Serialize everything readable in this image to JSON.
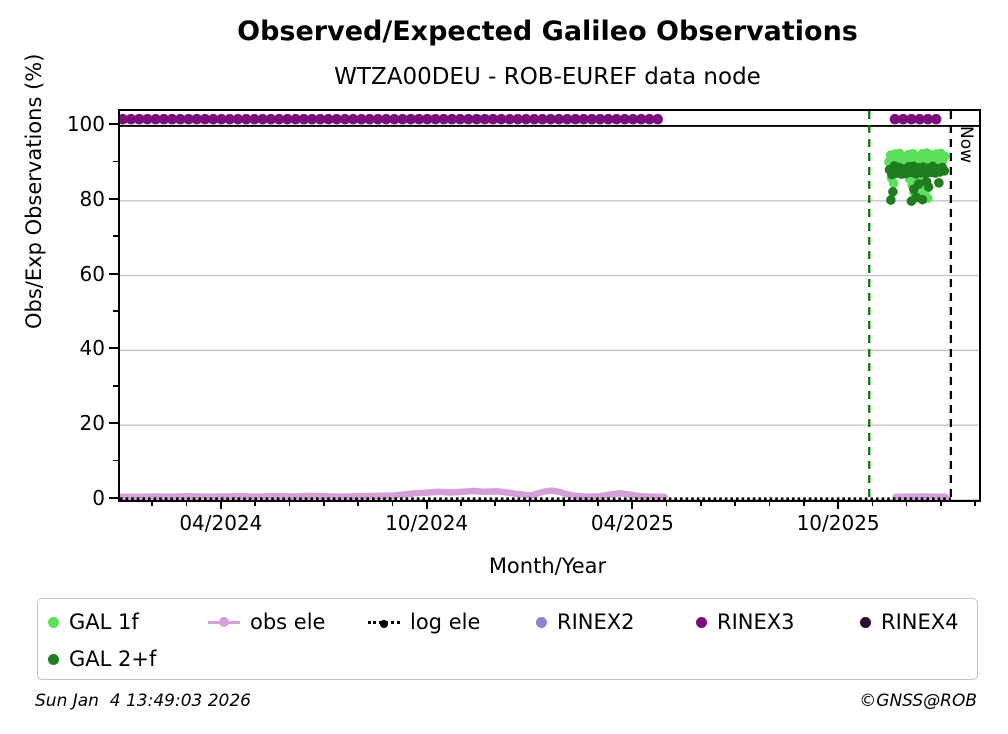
{
  "header": {
    "title": "Observed/Expected Galileo Observations",
    "subtitle": "WTZA00DEU - ROB-EUREF data node"
  },
  "footer": {
    "timestamp": "Sun Jan  4 13:49:03 2026",
    "copyright": "©GNSS@ROB"
  },
  "legend": {
    "items": [
      {
        "label": "GAL 1f",
        "color": "#5ce05c",
        "marker": "dot"
      },
      {
        "label": "GAL 2+f",
        "color": "#1f7d1f",
        "marker": "dot"
      },
      {
        "label": "obs ele",
        "color": "#d5a0d8",
        "marker": "line-dot"
      },
      {
        "label": "log ele",
        "color": "#000000",
        "marker": "dotted-line-dot"
      },
      {
        "label": "RINEX2",
        "color": "#8a85cf",
        "marker": "dot"
      },
      {
        "label": "RINEX3",
        "color": "#7c0d7c",
        "marker": "dot"
      },
      {
        "label": "RINEX4",
        "color": "#2e0b36",
        "marker": "dot"
      }
    ]
  },
  "chart_data": {
    "type": "scatter",
    "title": "Observed/Expected Galileo Observations",
    "subtitle": "WTZA00DEU - ROB-EUREF data node",
    "xlabel": "Month/Year",
    "ylabel": "Obs/Exp Observations (%)",
    "x_unit": "months since 2024-01-01",
    "xlim": [
      0,
      25.05
    ],
    "ylim": [
      0,
      104
    ],
    "grid": {
      "y_gray": [
        0,
        20,
        40,
        60,
        80
      ],
      "y_black_ref": 100,
      "gray_color": "#c6c6c6"
    },
    "yticks": [
      {
        "v": 0,
        "label": "0"
      },
      {
        "v": 20,
        "label": "20"
      },
      {
        "v": 40,
        "label": "40"
      },
      {
        "v": 60,
        "label": "60"
      },
      {
        "v": 80,
        "label": "80"
      },
      {
        "v": 100,
        "label": "100"
      }
    ],
    "yticks_minor": [
      10,
      30,
      50,
      70,
      90
    ],
    "xticks": [
      {
        "v": 3,
        "label": "04/2024"
      },
      {
        "v": 9,
        "label": "10/2024"
      },
      {
        "v": 15,
        "label": "04/2025"
      },
      {
        "v": 21,
        "label": "10/2025"
      }
    ],
    "xticks_minor": [
      1,
      2,
      4,
      5,
      6,
      7,
      8,
      10,
      11,
      12,
      13,
      14,
      16,
      17,
      18,
      19,
      20,
      22,
      23,
      24,
      25
    ],
    "vlines": [
      {
        "name": "data-gate-line",
        "x": 21.85,
        "color": "#007a00",
        "dash": "8 6",
        "width": 2.3
      },
      {
        "name": "now-line",
        "x": 24.23,
        "color": "#000000",
        "dash": "8 6",
        "width": 2.3,
        "label": "Now"
      }
    ],
    "series": [
      {
        "name": "RINEX3",
        "type": "dot_band",
        "color": "#7c0d7c",
        "y": 101.8,
        "dot_r": 5.3,
        "segments": [
          [
            0.08,
            15.88
          ],
          [
            22.6,
            24.03
          ]
        ]
      },
      {
        "name": "obs ele",
        "type": "line",
        "color": "#d5a0d8",
        "width": 6.5,
        "segments": [
          [
            [
              0,
              0.9
            ],
            [
              0.5,
              0.85
            ],
            [
              1,
              0.95
            ],
            [
              1.5,
              0.9
            ],
            [
              2,
              1.0
            ],
            [
              2.5,
              0.9
            ],
            [
              3,
              0.95
            ],
            [
              3.5,
              1.0
            ],
            [
              4,
              0.9
            ],
            [
              4.5,
              1.05
            ],
            [
              5,
              0.95
            ],
            [
              5.5,
              1.1
            ],
            [
              6,
              1.0
            ],
            [
              6.5,
              0.9
            ],
            [
              7,
              1.05
            ],
            [
              7.5,
              1.1
            ],
            [
              8,
              1.2
            ],
            [
              8.3,
              1.5
            ],
            [
              8.6,
              1.8
            ],
            [
              9,
              2.0
            ],
            [
              9.3,
              2.2
            ],
            [
              9.6,
              2.0
            ],
            [
              10,
              2.2
            ],
            [
              10.3,
              2.4
            ],
            [
              10.6,
              2.2
            ],
            [
              11,
              2.3
            ],
            [
              11.3,
              2.0
            ],
            [
              11.6,
              1.6
            ],
            [
              12,
              1.2
            ],
            [
              12.2,
              1.8
            ],
            [
              12.4,
              2.3
            ],
            [
              12.6,
              2.5
            ],
            [
              12.8,
              2.2
            ],
            [
              13,
              1.6
            ],
            [
              13.3,
              1.1
            ],
            [
              13.6,
              0.9
            ],
            [
              14,
              1.0
            ],
            [
              14.3,
              1.5
            ],
            [
              14.6,
              1.8
            ],
            [
              14.9,
              1.4
            ],
            [
              15.2,
              1.0
            ],
            [
              15.5,
              0.9
            ],
            [
              15.88,
              0.85
            ]
          ],
          [
            [
              22.62,
              0.85
            ],
            [
              23.0,
              0.9
            ],
            [
              23.4,
              0.95
            ],
            [
              23.8,
              0.9
            ],
            [
              24.08,
              0.85
            ]
          ]
        ]
      },
      {
        "name": "log ele",
        "type": "dotted_line",
        "color": "#000000",
        "y": 0.35,
        "x_range": [
          0,
          24.23
        ],
        "width": 2.6,
        "dash": "2.6 3"
      },
      {
        "name": "GAL 1f",
        "type": "scatter",
        "color": "#5ce05c",
        "dot_r": 4.8,
        "points": [
          [
            22.42,
            90.4
          ],
          [
            22.47,
            92.2
          ],
          [
            22.53,
            89.9
          ],
          [
            22.6,
            92.5
          ],
          [
            22.66,
            90.9
          ],
          [
            22.73,
            92.7
          ],
          [
            22.8,
            90.1
          ],
          [
            22.87,
            91.6
          ],
          [
            22.93,
            90.2
          ],
          [
            23.0,
            92.4
          ],
          [
            23.06,
            90.7
          ],
          [
            23.13,
            92.6
          ],
          [
            23.2,
            90.0
          ],
          [
            23.27,
            91.9
          ],
          [
            23.33,
            90.5
          ],
          [
            23.4,
            92.6
          ],
          [
            23.47,
            91.0
          ],
          [
            23.53,
            92.8
          ],
          [
            23.6,
            90.2
          ],
          [
            23.67,
            92.3
          ],
          [
            23.73,
            90.7
          ],
          [
            23.8,
            92.5
          ],
          [
            23.87,
            91.1
          ],
          [
            23.93,
            92.7
          ],
          [
            24.0,
            90.8
          ],
          [
            24.05,
            91.9
          ],
          [
            22.5,
            86.1
          ],
          [
            22.56,
            84.7
          ],
          [
            23.02,
            85.9
          ],
          [
            23.1,
            84.2
          ],
          [
            23.16,
            82.1
          ],
          [
            23.23,
            86.3
          ],
          [
            23.3,
            83.9
          ],
          [
            23.36,
            81.4
          ],
          [
            23.43,
            85.3
          ],
          [
            23.5,
            82.9
          ],
          [
            23.56,
            80.7
          ]
        ]
      },
      {
        "name": "GAL 2+f",
        "type": "scatter",
        "color": "#1f7d1f",
        "dot_r": 4.8,
        "points": [
          [
            22.44,
            88.3
          ],
          [
            22.51,
            87.0
          ],
          [
            22.58,
            89.3
          ],
          [
            22.65,
            87.4
          ],
          [
            22.72,
            88.9
          ],
          [
            22.79,
            87.1
          ],
          [
            22.86,
            88.5
          ],
          [
            22.93,
            87.3
          ],
          [
            23.0,
            89.1
          ],
          [
            23.07,
            87.6
          ],
          [
            23.14,
            89.2
          ],
          [
            23.21,
            87.2
          ],
          [
            23.28,
            88.8
          ],
          [
            23.35,
            87.5
          ],
          [
            23.42,
            89.0
          ],
          [
            23.49,
            87.3
          ],
          [
            23.56,
            88.7
          ],
          [
            23.63,
            87.6
          ],
          [
            23.7,
            89.2
          ],
          [
            23.77,
            87.4
          ],
          [
            23.84,
            88.6
          ],
          [
            23.91,
            87.7
          ],
          [
            23.98,
            88.9
          ],
          [
            24.04,
            88.0
          ],
          [
            22.48,
            80.2
          ],
          [
            22.54,
            82.4
          ],
          [
            23.08,
            79.9
          ],
          [
            23.15,
            83.1
          ],
          [
            23.22,
            80.9
          ],
          [
            23.29,
            84.5
          ],
          [
            23.4,
            80.3
          ],
          [
            23.52,
            85.1
          ],
          [
            23.58,
            83.7
          ],
          [
            23.88,
            84.8
          ]
        ]
      },
      {
        "name": "RINEX2",
        "type": "scatter",
        "color": "#8a85cf",
        "dot_r": 4.8,
        "points": []
      },
      {
        "name": "RINEX4",
        "type": "scatter",
        "color": "#2e0b36",
        "dot_r": 4.8,
        "points": []
      }
    ],
    "now_label": "Now"
  }
}
